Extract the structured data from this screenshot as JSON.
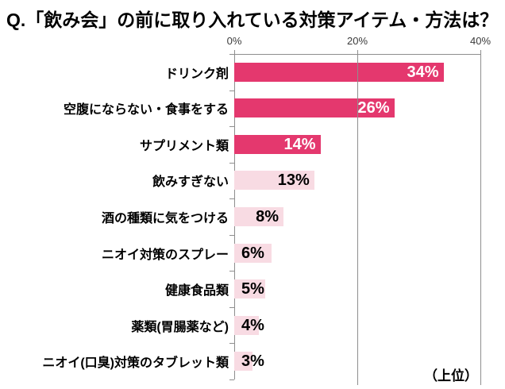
{
  "title": "Q.「飲み会」の前に取り入れている対策アイテム・方法は？",
  "note": "（上位）",
  "chart_data": {
    "type": "bar",
    "orientation": "horizontal",
    "title": "Q.「飲み会」の前に取り入れている対策アイテム・方法は？",
    "categories": [
      "ドリンク剤",
      "空腹にならない・食事をする",
      "サプリメント類",
      "飲みすぎない",
      "酒の種類に気をつける",
      "ニオイ対策のスプレー",
      "健康食品類",
      "薬類(胃腸薬など)",
      "ニオイ(口臭)対策のタブレット類"
    ],
    "values": [
      34,
      26,
      14,
      13,
      8,
      6,
      5,
      4,
      3
    ],
    "value_labels": [
      "34%",
      "26%",
      "14%",
      "13%",
      "8%",
      "6%",
      "5%",
      "4%",
      "3%"
    ],
    "xlim": [
      0,
      40
    ],
    "x_ticks": [
      0,
      20,
      40
    ],
    "x_tick_labels": [
      "0%",
      "20%",
      "40%"
    ],
    "grid": true,
    "legend": "none",
    "annotation": "（上位）",
    "highlight_count": 3,
    "colors": {
      "highlight_bar": "#e4386e",
      "normal_bar": "#f8dbe3",
      "highlight_value_text": "#ffffff",
      "normal_value_text": "#000000",
      "axis_gray": "#8e8e8e"
    }
  }
}
